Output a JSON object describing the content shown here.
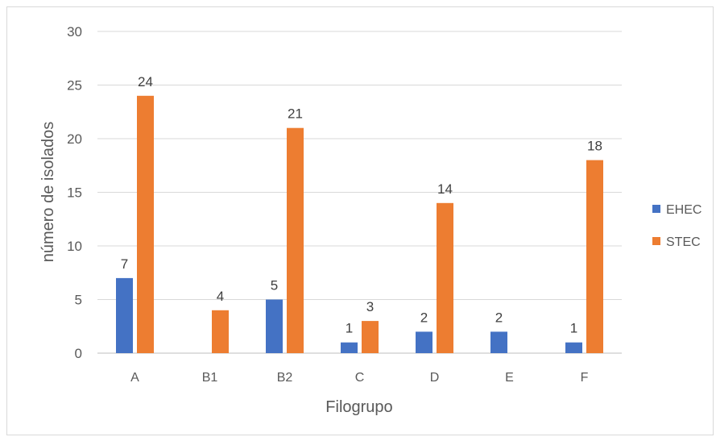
{
  "chart_data": {
    "type": "bar",
    "title": "",
    "xlabel": "Filogrupo",
    "ylabel": "número de isolados",
    "ylim": [
      0,
      30
    ],
    "yticks": [
      0,
      5,
      10,
      15,
      20,
      25,
      30
    ],
    "grid": true,
    "legend_position": "right",
    "categories": [
      "A",
      "B1",
      "B2",
      "C",
      "D",
      "E",
      "F"
    ],
    "series": [
      {
        "name": "EHEC",
        "color": "#4472c4",
        "values": [
          7,
          null,
          5,
          1,
          2,
          2,
          1
        ],
        "labels": [
          "7",
          "",
          "5",
          "1",
          "2",
          "2",
          "1"
        ]
      },
      {
        "name": "STEC",
        "color": "#ed7d31",
        "values": [
          24,
          4,
          21,
          3,
          14,
          null,
          18
        ],
        "labels": [
          "24",
          "4",
          "21",
          "3",
          "14",
          "",
          "18"
        ]
      }
    ]
  }
}
